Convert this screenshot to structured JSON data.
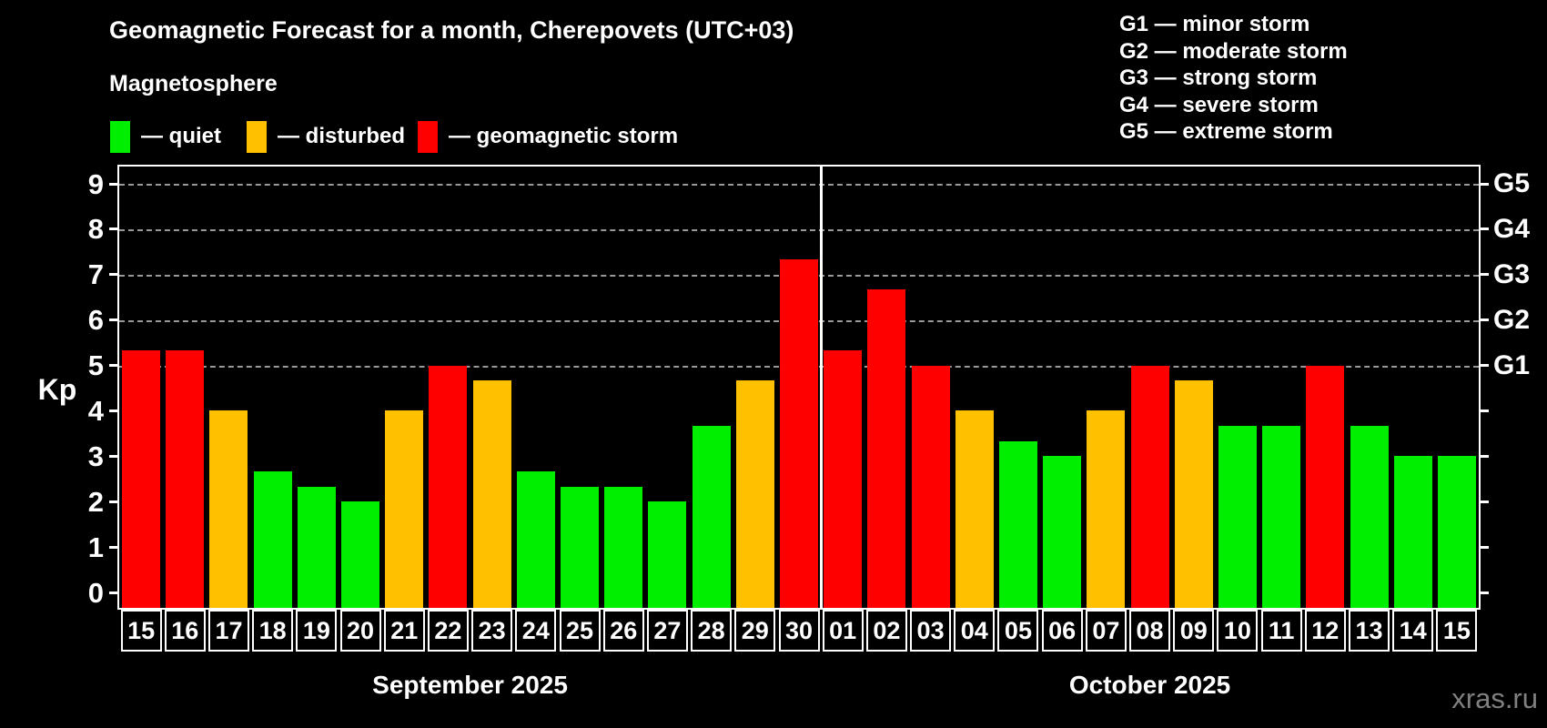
{
  "title": "Geomagnetic Forecast for a month, Cherepovets (UTC+03)",
  "subtitle": "Magnetosphere",
  "legend": {
    "items": [
      {
        "key": "quiet",
        "label": "— quiet",
        "color": "#00ee00"
      },
      {
        "key": "disturbed",
        "label": "— disturbed",
        "color": "#ffc000"
      },
      {
        "key": "storm",
        "label": "— geomagnetic storm",
        "color": "#ff0000"
      }
    ]
  },
  "g_legend": {
    "items": [
      "G1 — minor storm",
      "G2 — moderate storm",
      "G3 — strong storm",
      "G4 — severe storm",
      "G5 — extreme storm"
    ]
  },
  "watermark": "xras.ru",
  "chart_data": {
    "type": "bar",
    "ylabel": "Kp",
    "ylim": [
      0,
      9
    ],
    "yticks": [
      0,
      1,
      2,
      3,
      4,
      5,
      6,
      7,
      8,
      9
    ],
    "grid_levels": [
      5,
      6,
      7,
      8,
      9
    ],
    "grid_on": true,
    "right_labels": [
      {
        "level": 5,
        "label": "G1"
      },
      {
        "level": 6,
        "label": "G2"
      },
      {
        "level": 7,
        "label": "G3"
      },
      {
        "level": 8,
        "label": "G4"
      },
      {
        "level": 9,
        "label": "G5"
      }
    ],
    "months": [
      {
        "label": "September 2025",
        "days_count": 16
      },
      {
        "label": "October 2025",
        "days_count": 15
      }
    ],
    "categories": [
      "15",
      "16",
      "17",
      "18",
      "19",
      "20",
      "21",
      "22",
      "23",
      "24",
      "25",
      "26",
      "27",
      "28",
      "29",
      "30",
      "01",
      "02",
      "03",
      "04",
      "05",
      "06",
      "07",
      "08",
      "09",
      "10",
      "11",
      "12",
      "13",
      "14",
      "15"
    ],
    "values": [
      5.33,
      5.33,
      4,
      2.67,
      2.33,
      2,
      4,
      5,
      4.67,
      2.67,
      2.33,
      2.33,
      2,
      3.67,
      4.67,
      7.33,
      5.33,
      6.67,
      5,
      4,
      3.33,
      3,
      4,
      5,
      4.67,
      3.67,
      3.67,
      5,
      3.67,
      3,
      3
    ],
    "statuses": [
      "storm",
      "storm",
      "disturbed",
      "quiet",
      "quiet",
      "quiet",
      "disturbed",
      "storm",
      "disturbed",
      "quiet",
      "quiet",
      "quiet",
      "quiet",
      "quiet",
      "disturbed",
      "storm",
      "storm",
      "storm",
      "storm",
      "disturbed",
      "quiet",
      "quiet",
      "disturbed",
      "storm",
      "disturbed",
      "quiet",
      "quiet",
      "storm",
      "quiet",
      "quiet",
      "quiet"
    ],
    "colors": {
      "quiet": "#00ee00",
      "disturbed": "#ffc000",
      "storm": "#ff0000"
    }
  }
}
